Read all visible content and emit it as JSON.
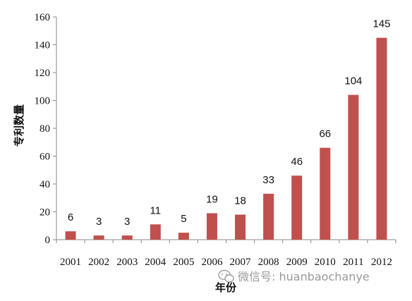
{
  "chart_data": {
    "type": "bar",
    "categories": [
      "2001",
      "2002",
      "2003",
      "2004",
      "2005",
      "2006",
      "2007",
      "2008",
      "2009",
      "2010",
      "2011",
      "2012"
    ],
    "values": [
      6,
      3,
      3,
      11,
      5,
      19,
      18,
      33,
      46,
      66,
      104,
      145
    ],
    "data_labels": [
      "6",
      "3",
      "3",
      "11",
      "5",
      "19",
      "18",
      "33",
      "46",
      "66",
      "104",
      "145"
    ],
    "title": "",
    "xlabel": "年份",
    "ylabel": "专利数量",
    "ylim": [
      0,
      160
    ],
    "yticks": [
      0,
      20,
      40,
      60,
      80,
      100,
      120,
      140,
      160
    ],
    "ytick_labels": [
      "0",
      "20",
      "40",
      "60",
      "80",
      "100",
      "120",
      "140",
      "160"
    ],
    "grid": false,
    "legend": "none",
    "bar_color": "#c0504d"
  },
  "watermark": {
    "text": "微信号: huanbaochanye",
    "icon": "wechat-icon"
  }
}
